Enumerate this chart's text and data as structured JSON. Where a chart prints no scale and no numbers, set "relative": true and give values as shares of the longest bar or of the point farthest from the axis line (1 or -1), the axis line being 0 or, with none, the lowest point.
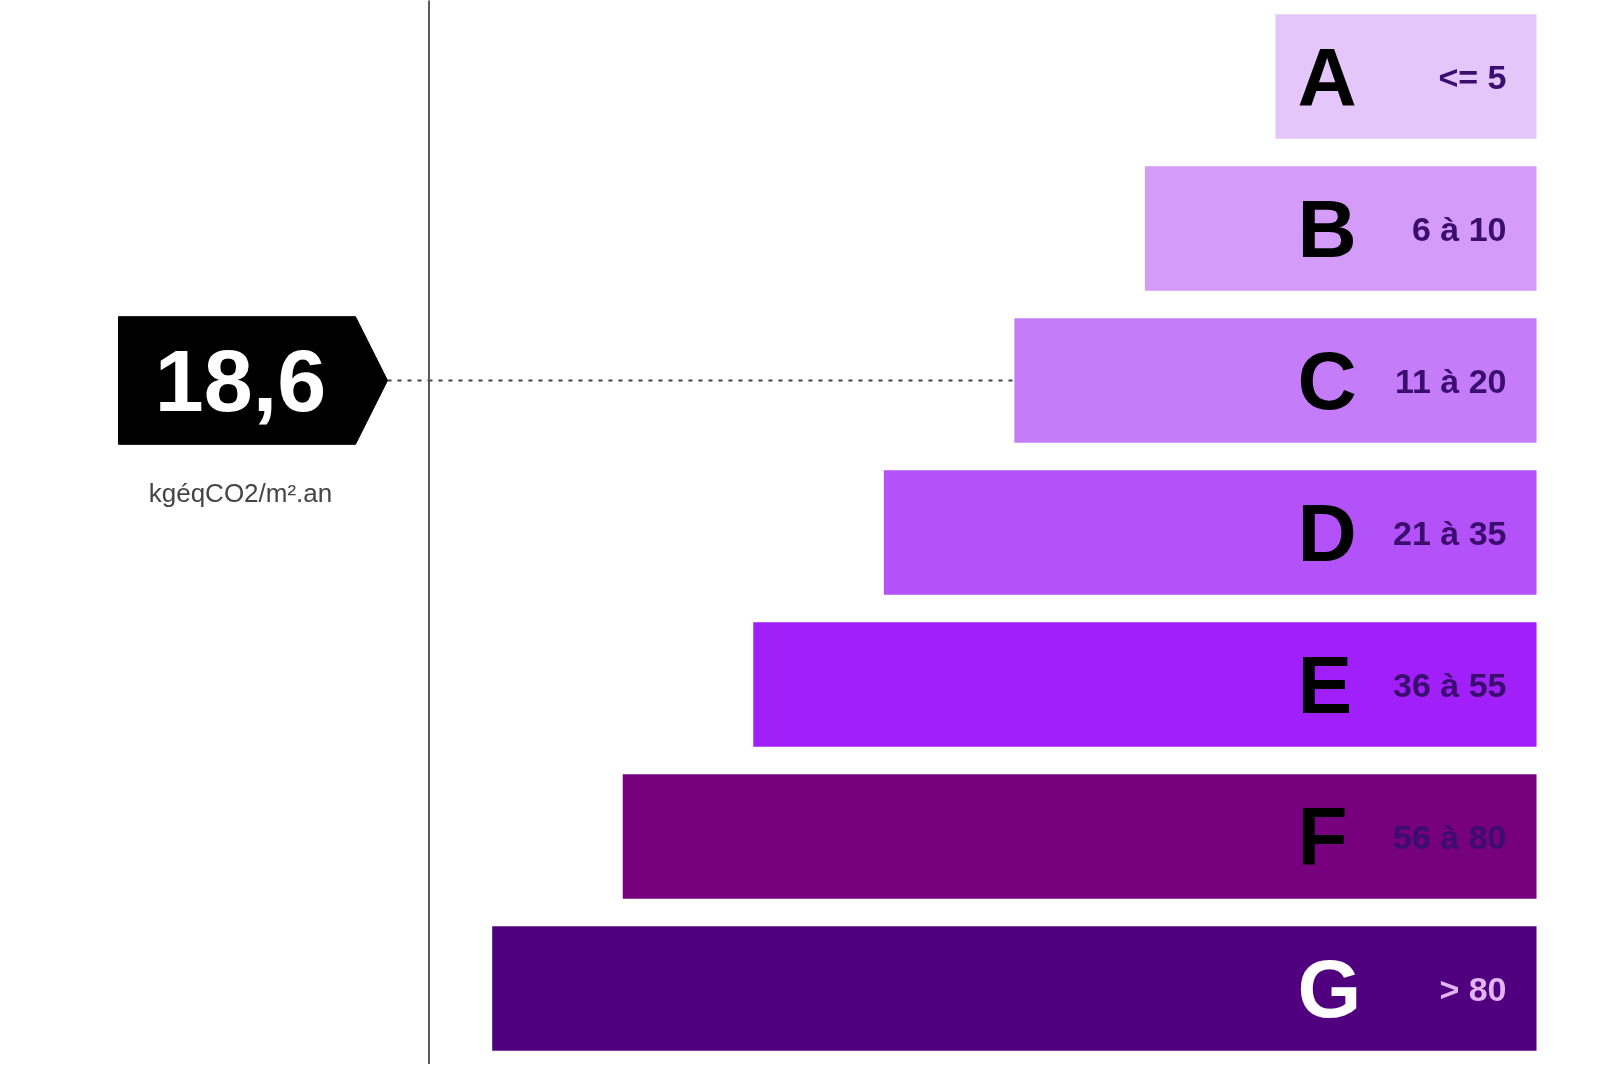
{
  "chart_data": {
    "type": "bar",
    "orientation": "horizontal",
    "relative": true,
    "categories": [
      "A",
      "B",
      "C",
      "D",
      "E",
      "F",
      "G"
    ],
    "values": [
      0.25,
      0.375,
      0.5,
      0.625,
      0.75,
      0.875,
      1
    ],
    "colors": [
      "#e4c6fa",
      "#d49cf8",
      "#c47cf8",
      "#b352f8",
      "#a11ff8",
      "#76007e",
      "#50007f"
    ],
    "ref_lines": [
      {
        "axis": "y",
        "value": "C",
        "label": "18,6",
        "color": "#444444",
        "line_style": "dotted"
      }
    ],
    "annotations": [
      {
        "text": "<= 5",
        "y": "A"
      },
      {
        "text": "6 à 10",
        "y": "B"
      },
      {
        "text": "11 à 20",
        "y": "C"
      },
      {
        "text": "21 à 35",
        "y": "D"
      },
      {
        "text": "36 à 55",
        "y": "E"
      },
      {
        "text": "56 à 80",
        "y": "F"
      },
      {
        "text": "> 80",
        "y": "G"
      },
      "kgéqCO2/m².an"
    ]
  }
}
